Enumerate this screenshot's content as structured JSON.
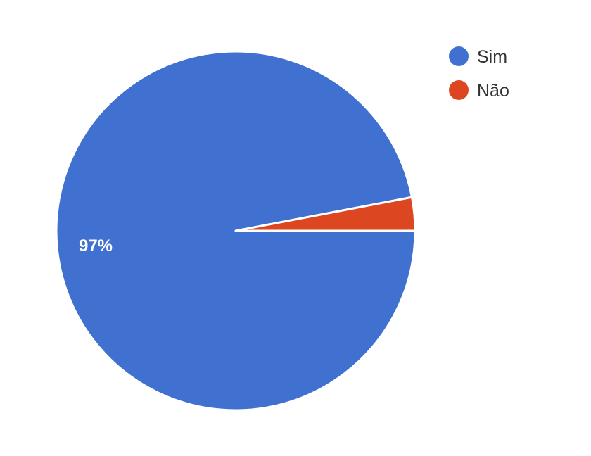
{
  "chart_data": {
    "type": "pie",
    "title": "",
    "categories": [
      "Sim",
      "Não"
    ],
    "values": [
      97,
      3
    ],
    "colors": [
      "#4171d0",
      "#dc4722"
    ],
    "data_labels": [
      "97%",
      ""
    ],
    "legend": {
      "placement": "top-right",
      "entries": [
        "Sim",
        "Não"
      ]
    },
    "start_angle_deg": 90,
    "direction": "counterclockwise"
  }
}
